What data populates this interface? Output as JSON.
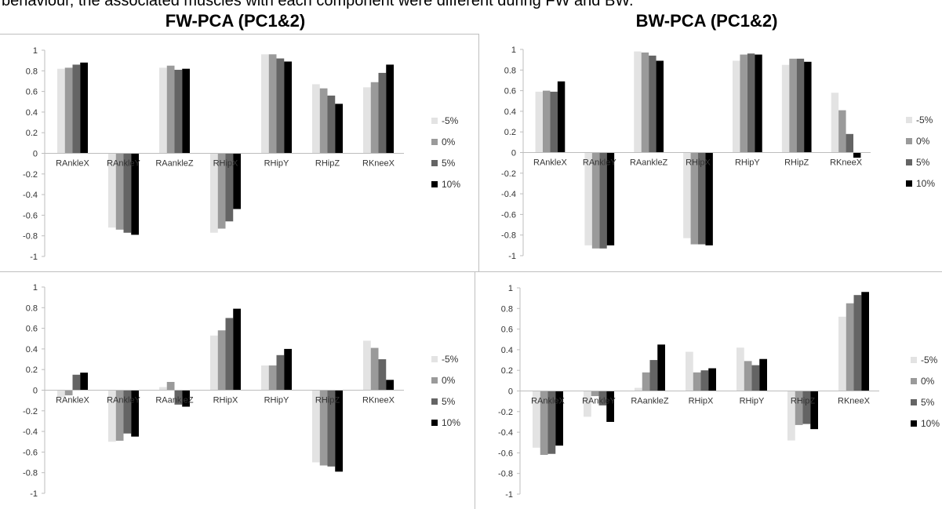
{
  "caption": "behaviour, the associated muscles with each component were different during FW and BW.",
  "columns": {
    "left_title": "FW-PCA (PC1&2)",
    "right_title": "BW-PCA (PC1&2)"
  },
  "colors": {
    "-5%": "#e3e3e3",
    "0%": "#9a9a9a",
    "5%": "#646464",
    "10%": "#000000",
    "axis": "#bdbdbd"
  },
  "chart_data": [
    {
      "type": "bar",
      "panel": "FW PC1",
      "categories": [
        "RAnkleX",
        "RAnkleY",
        "RAankleZ",
        "RHipX",
        "RHipY",
        "RHipZ",
        "RKneeX"
      ],
      "ylim": [
        -1,
        1
      ],
      "yticks": [
        "1",
        "0.8",
        "0.6",
        "0.4",
        "0.2",
        "0",
        "-0.2",
        "-0.4",
        "-0.6",
        "-0.8",
        "-1"
      ],
      "legend": {
        "position": "right",
        "entries": [
          "-5%",
          "0%",
          "5%",
          "10%"
        ]
      },
      "series": [
        {
          "name": "-5%",
          "values": [
            0.82,
            -0.72,
            0.83,
            -0.77,
            0.96,
            0.67,
            0.64
          ]
        },
        {
          "name": "0%",
          "values": [
            0.83,
            -0.74,
            0.85,
            -0.73,
            0.96,
            0.63,
            0.69
          ]
        },
        {
          "name": "5%",
          "values": [
            0.86,
            -0.77,
            0.81,
            -0.66,
            0.92,
            0.56,
            0.78
          ]
        },
        {
          "name": "10%",
          "values": [
            0.88,
            -0.79,
            0.82,
            -0.54,
            0.89,
            0.48,
            0.86
          ]
        }
      ]
    },
    {
      "type": "bar",
      "panel": "BW PC1",
      "categories": [
        "RAnkleX",
        "RAnkleY",
        "RAankleZ",
        "RHipX",
        "RHipY",
        "RHipZ",
        "RKneeX"
      ],
      "ylim": [
        -1,
        1
      ],
      "yticks": [
        "1",
        "0.8",
        "0.6",
        "0.4",
        "0.2",
        "0",
        "-0.2",
        "-0.4",
        "-0.6",
        "-0.8",
        "-1"
      ],
      "legend": {
        "position": "right",
        "entries": [
          "-5%",
          "0%",
          "5%",
          "10%"
        ]
      },
      "series": [
        {
          "name": "-5%",
          "values": [
            0.59,
            -0.9,
            0.98,
            -0.83,
            0.89,
            0.85,
            0.58
          ]
        },
        {
          "name": "0%",
          "values": [
            0.6,
            -0.93,
            0.97,
            -0.89,
            0.95,
            0.91,
            0.41
          ]
        },
        {
          "name": "5%",
          "values": [
            0.59,
            -0.93,
            0.94,
            -0.89,
            0.96,
            0.91,
            0.18
          ]
        },
        {
          "name": "10%",
          "values": [
            0.69,
            -0.9,
            0.89,
            -0.9,
            0.95,
            0.88,
            -0.05
          ]
        }
      ]
    },
    {
      "type": "bar",
      "panel": "FW PC2",
      "categories": [
        "RAnkleX",
        "RAnkleY",
        "RAankleZ",
        "RHipX",
        "RHipY",
        "RHipZ",
        "RKneeX"
      ],
      "ylim": [
        -1,
        1
      ],
      "yticks": [
        "1",
        "0.8",
        "0.6",
        "0.4",
        "0.2",
        "0",
        "-0.2",
        "-0.4",
        "-0.6",
        "-0.8",
        "-1"
      ],
      "legend": {
        "position": "right",
        "entries": [
          "-5%",
          "0%",
          "5%",
          "10%"
        ]
      },
      "series": [
        {
          "name": "-5%",
          "values": [
            -0.07,
            -0.5,
            0.03,
            0.53,
            0.24,
            -0.7,
            0.48
          ]
        },
        {
          "name": "0%",
          "values": [
            -0.05,
            -0.49,
            0.08,
            0.58,
            0.24,
            -0.73,
            0.41
          ]
        },
        {
          "name": "5%",
          "values": [
            0.15,
            -0.42,
            -0.14,
            0.7,
            0.34,
            -0.74,
            0.3
          ]
        },
        {
          "name": "10%",
          "values": [
            0.17,
            -0.45,
            -0.16,
            0.79,
            0.4,
            -0.79,
            0.1
          ]
        }
      ]
    },
    {
      "type": "bar",
      "panel": "BW PC2",
      "categories": [
        "RAnkleX",
        "RAnkleY",
        "RAankleZ",
        "RHipX",
        "RHipY",
        "RHipZ",
        "RKneeX"
      ],
      "ylim": [
        -1,
        1
      ],
      "yticks": [
        "1",
        "0.8",
        "0.6",
        "0.4",
        "0.2",
        "0",
        "-0.2",
        "-0.4",
        "-0.6",
        "-0.8",
        "-1"
      ],
      "legend": {
        "position": "right",
        "entries": [
          "-5%",
          "0%",
          "5%",
          "10%"
        ]
      },
      "series": [
        {
          "name": "-5%",
          "values": [
            -0.55,
            -0.25,
            0.03,
            0.38,
            0.42,
            -0.48,
            0.72
          ]
        },
        {
          "name": "0%",
          "values": [
            -0.62,
            -0.05,
            0.18,
            0.18,
            0.29,
            -0.33,
            0.85
          ]
        },
        {
          "name": "5%",
          "values": [
            -0.61,
            -0.14,
            0.3,
            0.2,
            0.25,
            -0.32,
            0.93
          ]
        },
        {
          "name": "10%",
          "values": [
            -0.53,
            -0.3,
            0.45,
            0.22,
            0.31,
            -0.37,
            0.96
          ]
        }
      ]
    }
  ]
}
